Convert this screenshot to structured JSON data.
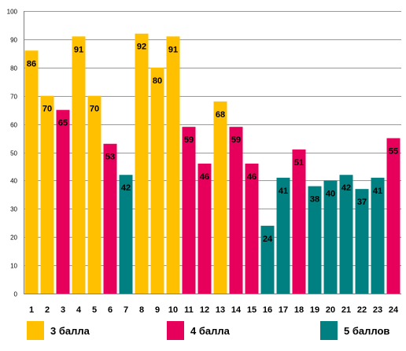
{
  "chart_data": {
    "type": "bar",
    "categories": [
      "1",
      "2",
      "3",
      "4",
      "5",
      "6",
      "7",
      "8",
      "9",
      "10",
      "11",
      "12",
      "13",
      "14",
      "15",
      "16",
      "17",
      "18",
      "19",
      "20",
      "21",
      "22",
      "23",
      "24"
    ],
    "values": [
      86,
      70,
      65,
      91,
      70,
      53,
      42,
      92,
      80,
      91,
      59,
      46,
      68,
      59,
      46,
      24,
      41,
      51,
      38,
      40,
      42,
      37,
      41,
      55
    ],
    "groups": [
      "3",
      "3",
      "4",
      "3",
      "3",
      "4",
      "5",
      "3",
      "3",
      "3",
      "4",
      "4",
      "3",
      "4",
      "4",
      "5",
      "5",
      "4",
      "5",
      "5",
      "5",
      "5",
      "5",
      "4"
    ],
    "ylim": [
      0,
      100
    ],
    "yticks": [
      0,
      10,
      20,
      30,
      40,
      50,
      60,
      70,
      80,
      90,
      100
    ],
    "grid": true,
    "legend_position": "bottom",
    "colors": {
      "3": "#FFC000",
      "4": "#E6005C",
      "5": "#008080"
    },
    "legend": [
      {
        "key": "3",
        "label": "3 балла"
      },
      {
        "key": "4",
        "label": "4 балла"
      },
      {
        "key": "5",
        "label": "5 баллов"
      }
    ]
  }
}
